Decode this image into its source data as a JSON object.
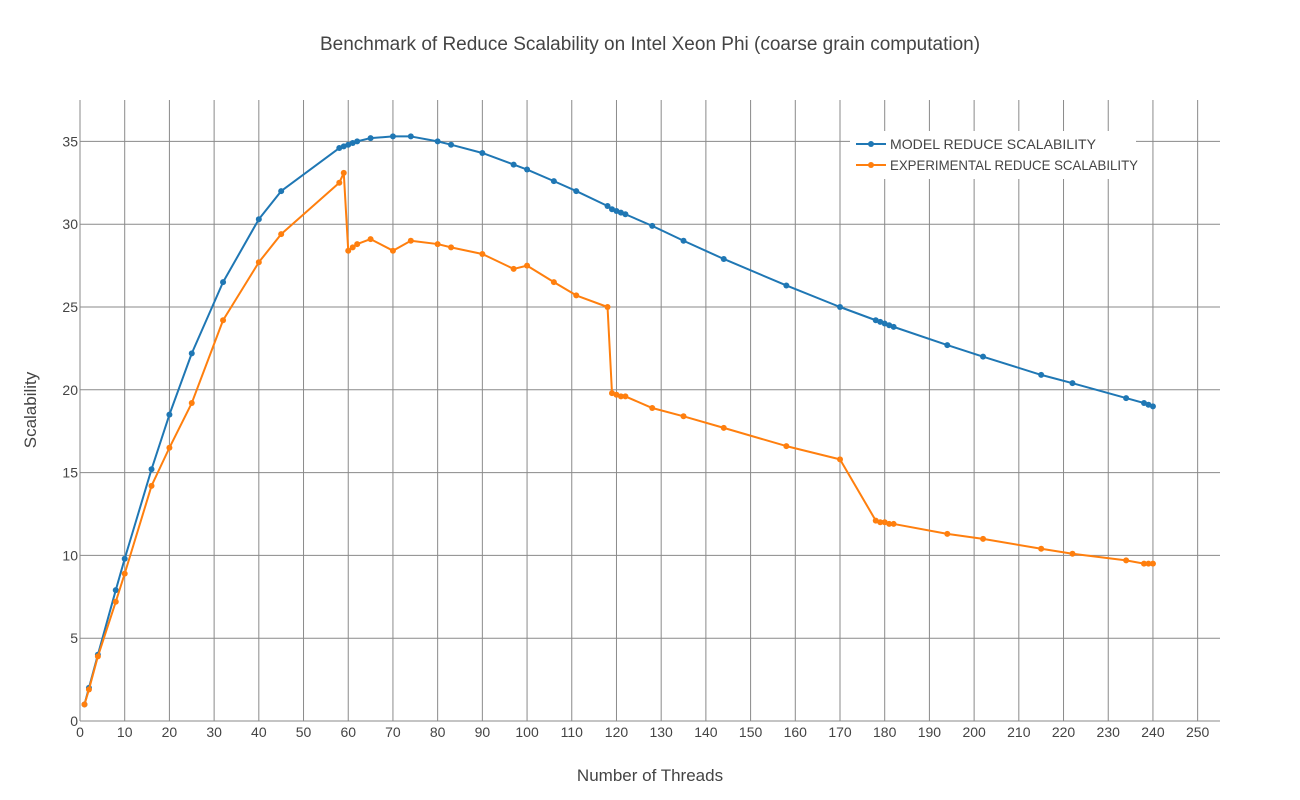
{
  "chart_data": {
    "type": "line",
    "title": "Benchmark of Reduce Scalability on Intel Xeon Phi (coarse grain computation)",
    "xlabel": "Number of Threads",
    "ylabel": "Scalability",
    "xlim": [
      0,
      255
    ],
    "ylim": [
      0,
      37.5
    ],
    "xticks": [
      0,
      10,
      20,
      30,
      40,
      50,
      60,
      70,
      80,
      90,
      100,
      110,
      120,
      130,
      140,
      150,
      160,
      170,
      180,
      190,
      200,
      210,
      220,
      230,
      240,
      250
    ],
    "yticks": [
      0,
      5,
      10,
      15,
      20,
      25,
      30,
      35
    ],
    "grid": true,
    "legend_position": "top-right",
    "series": [
      {
        "name": "MODEL REDUCE SCALABILITY",
        "color": "#1f77b4",
        "x": [
          1,
          2,
          4,
          8,
          10,
          16,
          20,
          25,
          32,
          40,
          45,
          58,
          59,
          60,
          61,
          62,
          65,
          70,
          74,
          80,
          83,
          90,
          97,
          100,
          106,
          111,
          118,
          119,
          120,
          121,
          122,
          128,
          135,
          144,
          158,
          170,
          178,
          179,
          180,
          181,
          182,
          194,
          202,
          215,
          222,
          234,
          238,
          239,
          240
        ],
        "y": [
          1.0,
          2.0,
          4.0,
          7.9,
          9.8,
          15.2,
          18.5,
          22.2,
          26.5,
          30.3,
          32.0,
          34.6,
          34.7,
          34.8,
          34.9,
          35.0,
          35.2,
          35.3,
          35.3,
          35.0,
          34.8,
          34.3,
          33.6,
          33.3,
          32.6,
          32.0,
          31.1,
          30.9,
          30.8,
          30.7,
          30.6,
          29.9,
          29.0,
          27.9,
          26.3,
          25.0,
          24.2,
          24.1,
          24.0,
          23.9,
          23.8,
          22.7,
          22.0,
          20.9,
          20.4,
          19.5,
          19.2,
          19.1,
          19.0
        ]
      },
      {
        "name": "EXPERIMENTAL REDUCE SCALABILITY",
        "color": "#ff7f0e",
        "x": [
          1,
          2,
          4,
          8,
          10,
          16,
          20,
          25,
          32,
          40,
          45,
          58,
          59,
          60,
          61,
          62,
          65,
          70,
          74,
          80,
          83,
          90,
          97,
          100,
          106,
          111,
          118,
          119,
          120,
          121,
          122,
          128,
          135,
          144,
          158,
          170,
          178,
          179,
          180,
          181,
          182,
          194,
          202,
          215,
          222,
          234,
          238,
          239,
          240
        ],
        "y": [
          1.0,
          1.9,
          3.9,
          7.2,
          8.9,
          14.2,
          16.5,
          19.2,
          24.2,
          27.7,
          29.4,
          32.5,
          33.1,
          28.4,
          28.6,
          28.8,
          29.1,
          28.4,
          29.0,
          28.8,
          28.6,
          28.2,
          27.3,
          27.5,
          26.5,
          25.7,
          25.0,
          19.8,
          19.7,
          19.6,
          19.6,
          18.9,
          18.4,
          17.7,
          16.6,
          15.8,
          12.1,
          12.0,
          12.0,
          11.9,
          11.9,
          11.3,
          11.0,
          10.4,
          10.1,
          9.7,
          9.5,
          9.5,
          9.5
        ]
      }
    ]
  }
}
